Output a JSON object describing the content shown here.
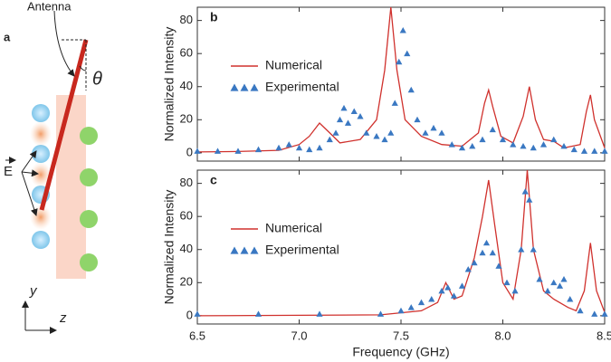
{
  "diagram": {
    "panel_label": "a",
    "antenna_label": "Antenna",
    "angle_label": "θ",
    "field_label": "E",
    "y_axis_label": "y",
    "z_axis_label": "z"
  },
  "chart_data": [
    {
      "type": "line",
      "panel_label": "b",
      "ylabel": "Normalized Intensity",
      "xlim": [
        6.5,
        8.5
      ],
      "ylim": [
        -5,
        88
      ],
      "yticks": [
        0,
        20,
        40,
        60,
        80
      ],
      "legend": "left",
      "series": [
        {
          "name": "Numerical",
          "color": "#d0312d",
          "style": "line",
          "x": [
            6.5,
            6.7,
            6.9,
            7.0,
            7.05,
            7.1,
            7.15,
            7.2,
            7.3,
            7.38,
            7.42,
            7.45,
            7.48,
            7.52,
            7.6,
            7.7,
            7.8,
            7.88,
            7.91,
            7.93,
            7.95,
            7.99,
            8.05,
            8.1,
            8.13,
            8.16,
            8.2,
            8.25,
            8.3,
            8.38,
            8.41,
            8.43,
            8.45,
            8.5
          ],
          "values": [
            0.5,
            0.8,
            1.5,
            5,
            10,
            18,
            12,
            6,
            8,
            20,
            50,
            88,
            50,
            20,
            10,
            5,
            4,
            12,
            30,
            38,
            28,
            10,
            6,
            22,
            40,
            20,
            8,
            7,
            3,
            5,
            25,
            35,
            20,
            3
          ]
        },
        {
          "name": "Experimental",
          "color": "#3a78c2",
          "style": "triangle",
          "x": [
            6.5,
            6.6,
            6.7,
            6.8,
            6.9,
            6.95,
            7.0,
            7.05,
            7.1,
            7.15,
            7.18,
            7.2,
            7.22,
            7.24,
            7.27,
            7.3,
            7.33,
            7.38,
            7.42,
            7.45,
            7.47,
            7.49,
            7.51,
            7.53,
            7.55,
            7.58,
            7.62,
            7.66,
            7.7,
            7.75,
            7.8,
            7.85,
            7.9,
            7.95,
            8.0,
            8.05,
            8.1,
            8.15,
            8.2,
            8.25,
            8.3,
            8.35,
            8.4,
            8.45,
            8.5
          ],
          "values": [
            1,
            1,
            1,
            2,
            3,
            5,
            3,
            2,
            3,
            8,
            12,
            20,
            27,
            18,
            25,
            22,
            12,
            10,
            8,
            12,
            30,
            55,
            74,
            60,
            38,
            20,
            12,
            15,
            12,
            5,
            3,
            4,
            8,
            14,
            8,
            5,
            4,
            3,
            5,
            8,
            4,
            2,
            1,
            1,
            1
          ]
        }
      ]
    },
    {
      "type": "line",
      "panel_label": "c",
      "ylabel": "Normalized Intensity",
      "xlabel": "Frequency (GHz)",
      "xlim": [
        6.5,
        8.5
      ],
      "ylim": [
        -5,
        88
      ],
      "yticks": [
        0,
        20,
        40,
        60,
        80
      ],
      "legend": "left",
      "xticks": [
        6.5,
        {
          "value": 7,
          "label": "7.0"
        },
        7.5,
        {
          "value": 8,
          "label": "8.0"
        },
        8.5
      ],
      "series": [
        {
          "name": "Numerical",
          "color": "#d0312d",
          "style": "line",
          "x": [
            6.5,
            7.4,
            7.6,
            7.68,
            7.72,
            7.76,
            7.8,
            7.86,
            7.9,
            7.93,
            7.96,
            8.0,
            8.05,
            8.09,
            8.12,
            8.15,
            8.2,
            8.25,
            8.32,
            8.36,
            8.4,
            8.43,
            8.46,
            8.5
          ],
          "values": [
            0,
            0.5,
            3,
            8,
            20,
            10,
            12,
            35,
            60,
            82,
            55,
            20,
            10,
            40,
            88,
            40,
            15,
            10,
            5,
            3,
            15,
            44,
            15,
            2
          ]
        },
        {
          "name": "Experimental",
          "color": "#3a78c2",
          "style": "triangle",
          "x": [
            6.5,
            6.8,
            7.1,
            7.4,
            7.5,
            7.55,
            7.6,
            7.65,
            7.7,
            7.73,
            7.76,
            7.8,
            7.83,
            7.86,
            7.9,
            7.92,
            7.95,
            7.98,
            8.02,
            8.06,
            8.09,
            8.11,
            8.13,
            8.15,
            8.18,
            8.22,
            8.25,
            8.28,
            8.3,
            8.33,
            8.38,
            8.45,
            8.5
          ],
          "values": [
            1,
            1,
            1,
            1,
            3,
            5,
            8,
            10,
            15,
            17,
            12,
            18,
            28,
            32,
            38,
            44,
            38,
            30,
            20,
            15,
            40,
            75,
            70,
            40,
            22,
            15,
            20,
            18,
            22,
            10,
            3,
            1,
            1
          ]
        }
      ]
    }
  ]
}
